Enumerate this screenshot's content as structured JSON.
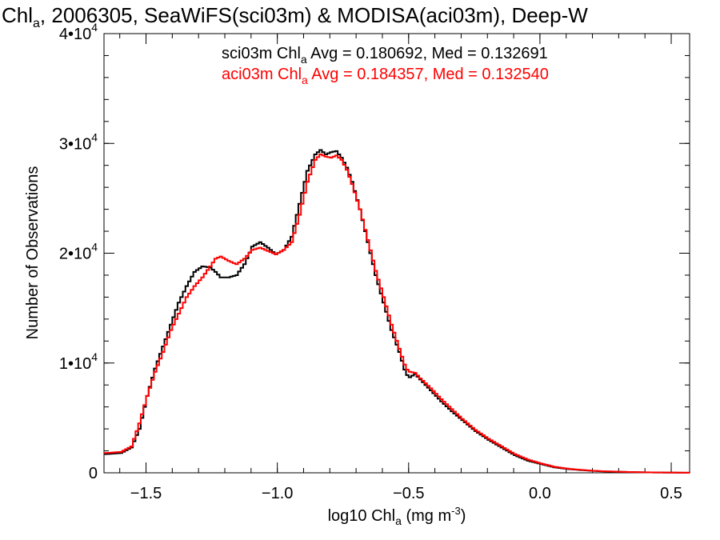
{
  "chart_data": {
    "type": "line",
    "title": "Chl",
    "title_sub": "a",
    "title_rest": ", 2006305, SeaWiFS(sci03m) & MODISA(aci03m), Deep-W",
    "xlabel": "log10 Chl",
    "xlabel_sub": "a",
    "xlabel_units": " (mg m",
    "xlabel_units_sup": "-3",
    "xlabel_close": ")",
    "ylabel": "Number of Observations",
    "xlim": [
      -1.66,
      0.57
    ],
    "ylim": [
      0,
      40000
    ],
    "x_ticks": [
      {
        "value": -1.5,
        "label": "−1.5"
      },
      {
        "value": -1.0,
        "label": "−1.0"
      },
      {
        "value": -0.5,
        "label": "−0.5"
      },
      {
        "value": 0.0,
        "label": "0.0"
      },
      {
        "value": 0.5,
        "label": "0.5"
      }
    ],
    "y_ticks": [
      {
        "value": 0,
        "mant": "0",
        "exp": ""
      },
      {
        "value": 10000,
        "mant": "1•10",
        "exp": "4"
      },
      {
        "value": 20000,
        "mant": "2•10",
        "exp": "4"
      },
      {
        "value": 30000,
        "mant": "3•10",
        "exp": "4"
      },
      {
        "value": 40000,
        "mant": "4•10",
        "exp": "4"
      }
    ],
    "x_minor_step": 0.1,
    "y_minor_step": 2000,
    "grid": false,
    "legend_position": "top-center",
    "series": [
      {
        "name": "sci03m",
        "color": "#000000",
        "legend_pre": "sci03m Chl",
        "legend_sub": "a",
        "legend_post": " Avg = 0.180692, Med = 0.132691",
        "points": [
          [
            -1.66,
            1700
          ],
          [
            -1.6,
            1800
          ],
          [
            -1.56,
            2300
          ],
          [
            -1.53,
            4000
          ],
          [
            -1.5,
            7000
          ],
          [
            -1.47,
            9500
          ],
          [
            -1.44,
            11500
          ],
          [
            -1.41,
            13500
          ],
          [
            -1.38,
            15500
          ],
          [
            -1.35,
            17000
          ],
          [
            -1.32,
            18300
          ],
          [
            -1.29,
            18800
          ],
          [
            -1.26,
            18700
          ],
          [
            -1.24,
            18300
          ],
          [
            -1.22,
            17800
          ],
          [
            -1.19,
            17800
          ],
          [
            -1.16,
            18000
          ],
          [
            -1.13,
            19000
          ],
          [
            -1.1,
            20600
          ],
          [
            -1.07,
            21000
          ],
          [
            -1.04,
            20500
          ],
          [
            -1.01,
            19900
          ],
          [
            -0.98,
            20300
          ],
          [
            -0.95,
            21500
          ],
          [
            -0.92,
            24500
          ],
          [
            -0.89,
            27500
          ],
          [
            -0.86,
            29000
          ],
          [
            -0.84,
            29400
          ],
          [
            -0.82,
            29000
          ],
          [
            -0.8,
            29200
          ],
          [
            -0.78,
            29300
          ],
          [
            -0.76,
            28700
          ],
          [
            -0.74,
            27800
          ],
          [
            -0.72,
            26500
          ],
          [
            -0.69,
            24000
          ],
          [
            -0.66,
            21000
          ],
          [
            -0.63,
            18000
          ],
          [
            -0.6,
            15500
          ],
          [
            -0.57,
            13000
          ],
          [
            -0.54,
            11000
          ],
          [
            -0.515,
            9000
          ],
          [
            -0.5,
            8700
          ],
          [
            -0.48,
            9000
          ],
          [
            -0.46,
            8500
          ],
          [
            -0.42,
            7500
          ],
          [
            -0.38,
            6500
          ],
          [
            -0.34,
            5600
          ],
          [
            -0.3,
            4800
          ],
          [
            -0.25,
            3800
          ],
          [
            -0.2,
            3000
          ],
          [
            -0.15,
            2300
          ],
          [
            -0.1,
            1600
          ],
          [
            -0.05,
            1100
          ],
          [
            0.0,
            800
          ],
          [
            0.05,
            500
          ],
          [
            0.1,
            350
          ],
          [
            0.15,
            250
          ],
          [
            0.2,
            170
          ],
          [
            0.25,
            120
          ],
          [
            0.3,
            90
          ],
          [
            0.35,
            60
          ],
          [
            0.4,
            40
          ],
          [
            0.45,
            25
          ],
          [
            0.5,
            15
          ],
          [
            0.57,
            8
          ]
        ]
      },
      {
        "name": "aci03m",
        "color": "#ff0000",
        "legend_pre": "aci03m Chl",
        "legend_sub": "a",
        "legend_post": " Avg = 0.184357, Med = 0.132540",
        "points": [
          [
            -1.66,
            1800
          ],
          [
            -1.6,
            1900
          ],
          [
            -1.56,
            2400
          ],
          [
            -1.53,
            4500
          ],
          [
            -1.5,
            7000
          ],
          [
            -1.47,
            9200
          ],
          [
            -1.44,
            11000
          ],
          [
            -1.41,
            13000
          ],
          [
            -1.38,
            14500
          ],
          [
            -1.35,
            16000
          ],
          [
            -1.32,
            17000
          ],
          [
            -1.29,
            17800
          ],
          [
            -1.26,
            18800
          ],
          [
            -1.24,
            19500
          ],
          [
            -1.22,
            19700
          ],
          [
            -1.19,
            19300
          ],
          [
            -1.16,
            19000
          ],
          [
            -1.13,
            19500
          ],
          [
            -1.1,
            20300
          ],
          [
            -1.07,
            20500
          ],
          [
            -1.04,
            20200
          ],
          [
            -1.01,
            19900
          ],
          [
            -0.98,
            20300
          ],
          [
            -0.95,
            21000
          ],
          [
            -0.92,
            23500
          ],
          [
            -0.89,
            26500
          ],
          [
            -0.86,
            28500
          ],
          [
            -0.84,
            29000
          ],
          [
            -0.82,
            28800
          ],
          [
            -0.8,
            28700
          ],
          [
            -0.78,
            28900
          ],
          [
            -0.76,
            28500
          ],
          [
            -0.74,
            27600
          ],
          [
            -0.72,
            26300
          ],
          [
            -0.69,
            24000
          ],
          [
            -0.66,
            21200
          ],
          [
            -0.63,
            18400
          ],
          [
            -0.6,
            16000
          ],
          [
            -0.57,
            13500
          ],
          [
            -0.54,
            11300
          ],
          [
            -0.515,
            9500
          ],
          [
            -0.5,
            9200
          ],
          [
            -0.48,
            9100
          ],
          [
            -0.46,
            8600
          ],
          [
            -0.42,
            7700
          ],
          [
            -0.38,
            6700
          ],
          [
            -0.34,
            5800
          ],
          [
            -0.3,
            4900
          ],
          [
            -0.25,
            3900
          ],
          [
            -0.2,
            3100
          ],
          [
            -0.15,
            2400
          ],
          [
            -0.1,
            1700
          ],
          [
            -0.05,
            1200
          ],
          [
            0.0,
            850
          ],
          [
            0.05,
            550
          ],
          [
            0.1,
            380
          ],
          [
            0.15,
            270
          ],
          [
            0.2,
            180
          ],
          [
            0.25,
            130
          ],
          [
            0.3,
            95
          ],
          [
            0.35,
            65
          ],
          [
            0.4,
            45
          ],
          [
            0.45,
            28
          ],
          [
            0.5,
            17
          ],
          [
            0.57,
            9
          ]
        ]
      }
    ]
  }
}
